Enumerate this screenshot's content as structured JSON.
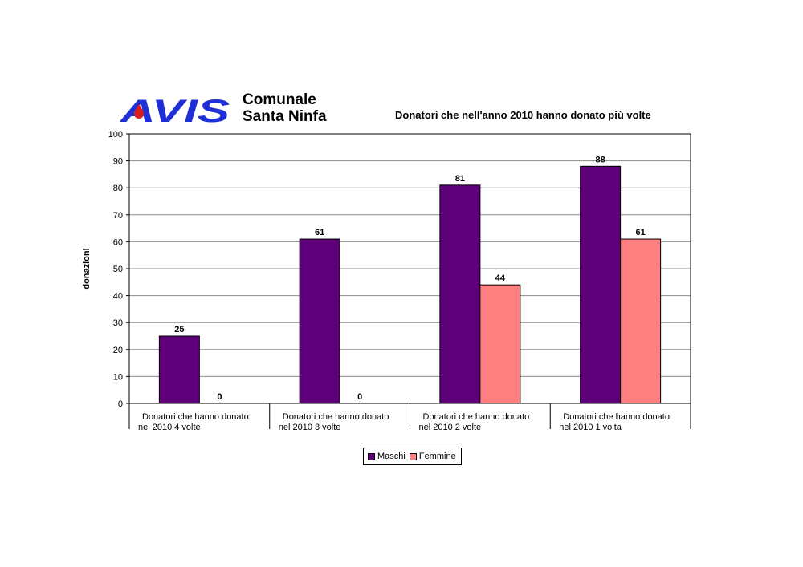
{
  "header": {
    "logo_text": "AVIS",
    "org_line1": "Comunale",
    "org_line2": "Santa Ninfa"
  },
  "colors": {
    "logo_blue": "#1f2fd8",
    "logo_drop": "#d81d1d",
    "maschi": "#5e007a",
    "femmine": "#ff7f80"
  },
  "chart_data": {
    "type": "bar",
    "title": "Donatori che nell'anno 2010 hanno donato più volte",
    "xlabel": "",
    "ylabel": "donazioni",
    "ylim": [
      0,
      100
    ],
    "yticks": [
      0,
      10,
      20,
      30,
      40,
      50,
      60,
      70,
      80,
      90,
      100
    ],
    "grid": true,
    "legend_position": "bottom",
    "categories": [
      [
        "Donatori che hanno donato",
        "nel 2010 4 volte"
      ],
      [
        "Donatori che hanno donato",
        "nel 2010 3 volte"
      ],
      [
        "Donatori che hanno donato",
        "nel 2010 2 volte"
      ],
      [
        "Donatori che hanno donato",
        "nel 2010 1 volta"
      ]
    ],
    "series": [
      {
        "name": "Maschi",
        "values": [
          25,
          61,
          81,
          88
        ]
      },
      {
        "name": "Femmine",
        "values": [
          0,
          0,
          44,
          61
        ]
      }
    ]
  }
}
